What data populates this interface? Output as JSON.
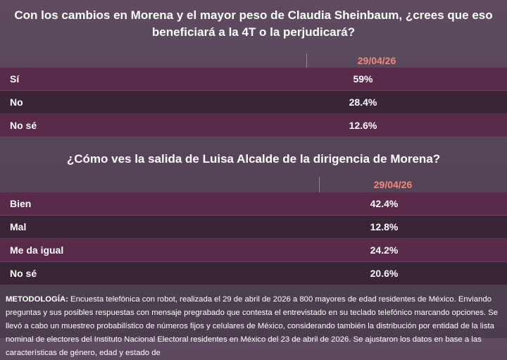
{
  "q1": {
    "title_line1": "Con los cambios en Morena y el mayor peso de Claudia Sheinbaum, ¿crees que eso",
    "title_line2": "beneficiará a la 4T o la perjudicará?",
    "date": "29/04/26",
    "rows": [
      {
        "label": "Sí",
        "value": "59%"
      },
      {
        "label": "No",
        "value": "28.4%"
      },
      {
        "label": "No sé",
        "value": "12.6%"
      }
    ]
  },
  "q2": {
    "title": "¿Cómo ves la salida de Luisa Alcalde de la dirigencia de Morena?",
    "date": "29/04/26",
    "rows": [
      {
        "label": "Bien",
        "value": "42.4%"
      },
      {
        "label": "Mal",
        "value": "12.8%"
      },
      {
        "label": "Me da igual",
        "value": "24.2%"
      },
      {
        "label": "No sé",
        "value": "20.6%"
      }
    ]
  },
  "methodology": {
    "heading": "METODOLOGÍA:",
    "text": " Encuesta telefónica con robot, realizada el 29 de abril de 2026 a 800 mayores de edad residentes de México. Enviando preguntas y sus posibles respuestas con mensaje pregrabado que contesta el entrevistado en su teclado telefónico marcando opciones. Se llevó a cabo un muestreo probabilístico de números fijos y celulares de México, considerando también la distribución por entidad de la lista nominal de electores del Instituto Nacional Electoral residentes en México del 23 de abril de 2026. Se ajustaron los datos en base a las características de género, edad y estado de"
  }
}
